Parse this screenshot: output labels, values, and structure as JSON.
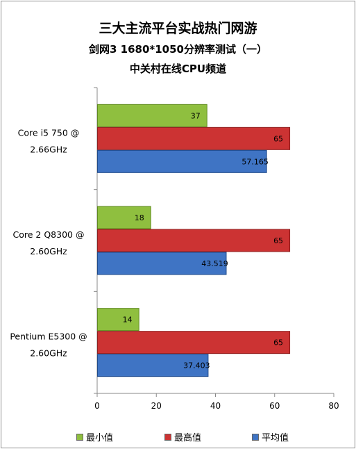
{
  "titles": {
    "line1": "三大主流平台实战热门网游",
    "line2": "剑网3 1680*1050分辨率测试（一）",
    "line3": "中关村在线CPU频道"
  },
  "colors": {
    "min": "#8fbf3f",
    "max": "#cc3333",
    "avg": "#3f74c4"
  },
  "chart_data": {
    "type": "bar",
    "orientation": "horizontal",
    "categories": [
      [
        "Core i5 750  @",
        "2.66GHz"
      ],
      [
        "Core 2 Q8300  @",
        "2.60GHz"
      ],
      [
        "Pentium E5300  @",
        "2.60GHz"
      ]
    ],
    "series": [
      {
        "name": "最小值",
        "values": [
          37,
          18,
          14
        ]
      },
      {
        "name": "最高值",
        "values": [
          65,
          65,
          65
        ]
      },
      {
        "name": "平均值",
        "values": [
          57.165,
          43.519,
          37.403
        ]
      }
    ],
    "xlim": [
      0,
      80
    ],
    "xticks": [
      0,
      20,
      40,
      60,
      80
    ],
    "legend_position": "bottom",
    "grid": false
  }
}
